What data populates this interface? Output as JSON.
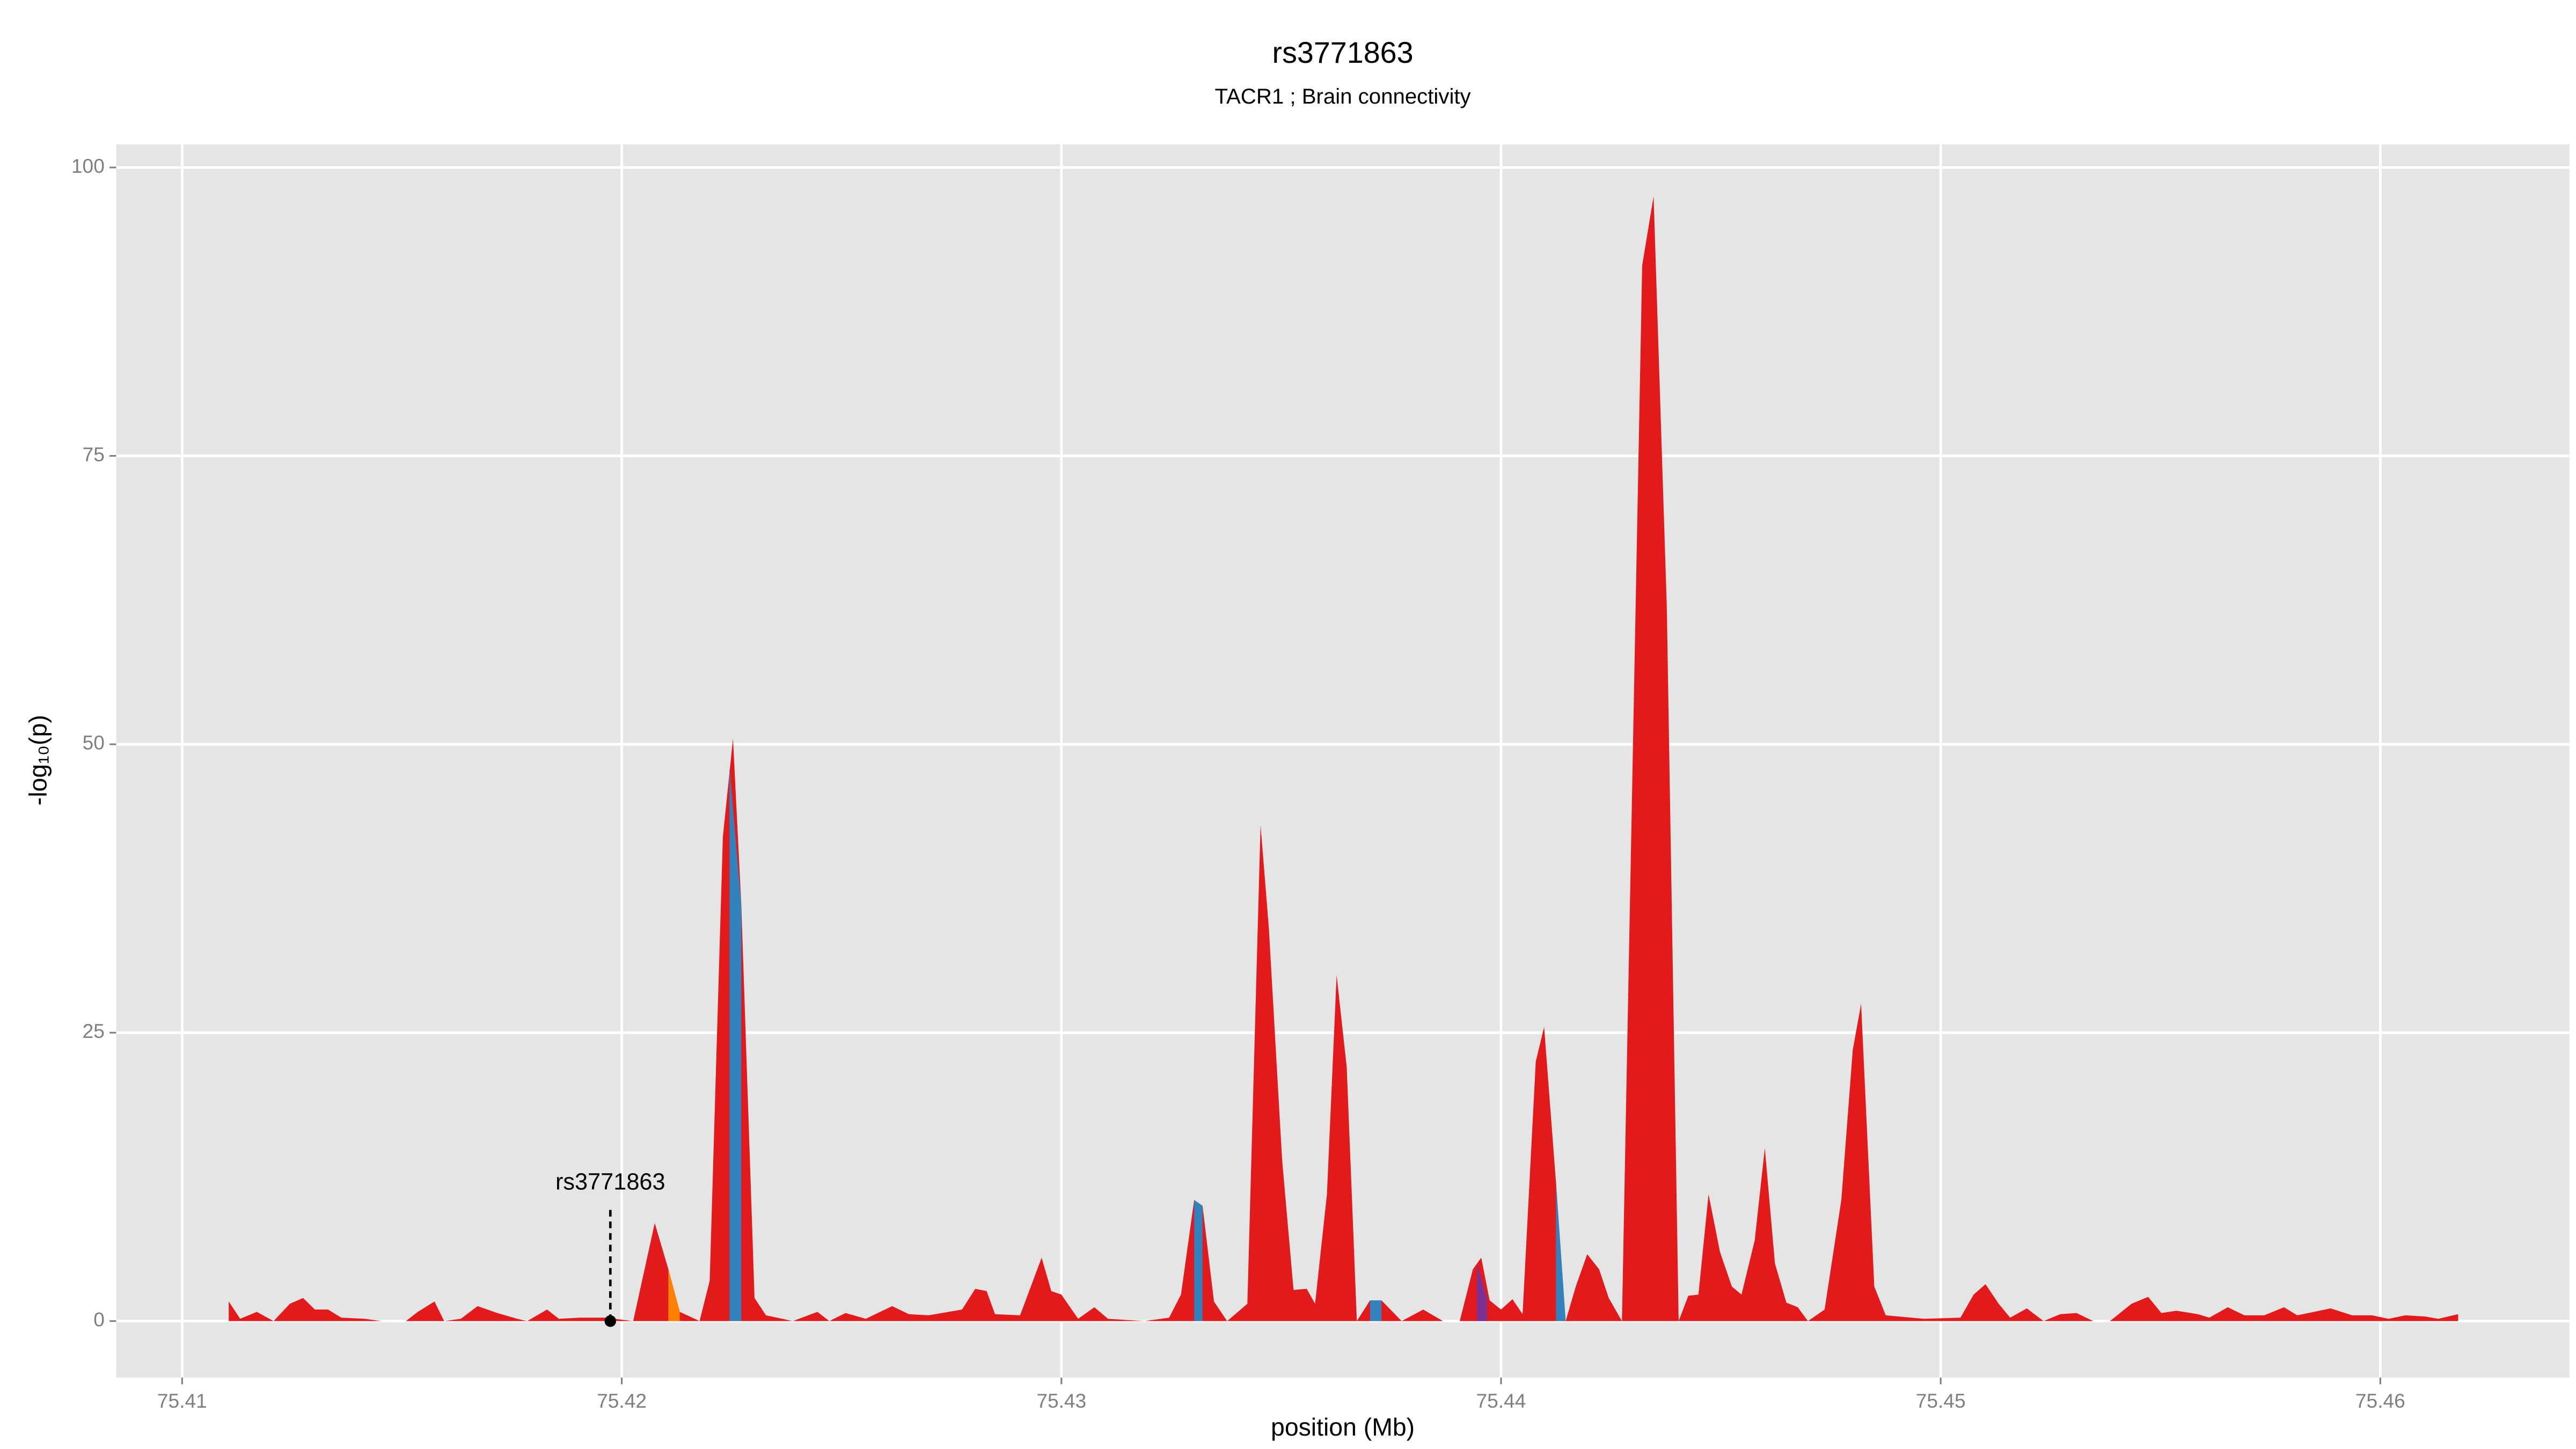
{
  "chart_data": {
    "type": "area",
    "title": "rs3771863",
    "subtitle": "TACR1 ; Brain connectivity",
    "x_label": "position (Mb)",
    "y_label": "-log₁₀(p)",
    "xlim": [
      75.4085,
      75.4643
    ],
    "ylim": [
      -4.9,
      102
    ],
    "xticks": [
      75.41,
      75.42,
      75.43,
      75.44,
      75.45,
      75.46
    ],
    "yticks": [
      0,
      25,
      50,
      75,
      100
    ],
    "grid": true,
    "series": [
      {
        "color": "#e31a1c",
        "x": [
          75.41106,
          75.41132,
          75.4117,
          75.41208,
          75.41245,
          75.41275,
          75.41302,
          75.41332,
          75.41362,
          75.41415,
          75.41453,
          75.41509,
          75.41536,
          75.41574,
          75.41596,
          75.41634,
          75.41672,
          75.41717,
          75.41762,
          75.41785,
          75.4183,
          75.41857,
          75.41906,
          75.41962,
          75.42026,
          75.42075,
          75.42106,
          75.42132,
          75.42177,
          75.422,
          75.4223,
          75.42253,
          75.42272,
          75.42302,
          75.42328,
          75.42389,
          75.42445,
          75.42472,
          75.42509,
          75.42555,
          75.42615,
          75.42653,
          75.42698,
          75.42774,
          75.42804,
          75.4283,
          75.42849,
          75.42906,
          75.42955,
          75.42977,
          75.43,
          75.43038,
          75.43075,
          75.43106,
          75.43189,
          75.43245,
          75.43272,
          75.43302,
          75.43321,
          75.43347,
          75.43377,
          75.43423,
          75.43453,
          75.43472,
          75.43502,
          75.43528,
          75.43558,
          75.43577,
          75.43604,
          75.43626,
          75.43649,
          75.43672,
          75.43702,
          75.43728,
          75.43774,
          75.43823,
          75.43868,
          75.43906,
          75.43936,
          75.43955,
          75.43974,
          75.44,
          75.44026,
          75.44049,
          75.44079,
          75.44098,
          75.44125,
          75.44147,
          75.4417,
          75.44196,
          75.44223,
          75.44245,
          75.44275,
          75.44321,
          75.44347,
          75.44377,
          75.44404,
          75.44426,
          75.44449,
          75.44472,
          75.44498,
          75.44525,
          75.44547,
          75.44577,
          75.446,
          75.44623,
          75.44649,
          75.44675,
          75.44698,
          75.44736,
          75.44774,
          75.448,
          75.44819,
          75.44849,
          75.44875,
          75.44962,
          75.45045,
          75.45075,
          75.45102,
          75.45132,
          75.45158,
          75.45196,
          75.45234,
          75.45272,
          75.45309,
          75.45347,
          75.45385,
          75.45434,
          75.45472,
          75.45502,
          75.45536,
          75.45585,
          75.45611,
          75.45653,
          75.45691,
          75.45736,
          75.45781,
          75.45811,
          75.45887,
          75.45936,
          75.45981,
          75.46019,
          75.46057,
          75.46102,
          75.46132,
          75.46177
        ],
        "values": [
          1.7,
          0.2,
          0.8,
          0,
          1.5,
          2,
          1,
          1,
          0.3,
          0.2,
          0,
          0,
          0.8,
          1.7,
          0,
          0.2,
          1.3,
          0.7,
          0.2,
          0,
          1,
          0.2,
          0.3,
          0.3,
          0,
          8.5,
          4.5,
          0.8,
          0,
          3.5,
          42,
          50.5,
          36,
          2,
          0.5,
          0,
          0.8,
          0,
          0.7,
          0.2,
          1.3,
          0.6,
          0.5,
          1,
          2.8,
          2.6,
          0.6,
          0.5,
          5.5,
          2.6,
          2.3,
          0.2,
          1.2,
          0.2,
          0,
          0.3,
          2.3,
          10.5,
          10,
          1.7,
          0,
          1.5,
          43,
          34,
          14,
          2.7,
          2.8,
          1.5,
          11,
          30,
          22,
          0,
          1.8,
          1.8,
          0,
          1,
          0,
          0,
          4.5,
          5.5,
          1.8,
          1,
          1.9,
          0.6,
          22.5,
          25.5,
          12,
          0,
          3,
          5.8,
          4.5,
          2,
          0,
          91.5,
          97.5,
          62,
          0,
          2.2,
          2.3,
          11,
          6,
          3,
          2.3,
          7,
          15,
          5,
          1.6,
          1.2,
          0,
          1,
          10.5,
          23.5,
          27.5,
          3,
          0.5,
          0.2,
          0.3,
          2.3,
          3.2,
          1.5,
          0.3,
          1.1,
          0,
          0.6,
          0.7,
          0,
          0,
          1.5,
          2.1,
          0.7,
          0.9,
          0.6,
          0.3,
          1.2,
          0.5,
          0.5,
          1.2,
          0.5,
          1.1,
          0.5,
          0.5,
          0.2,
          0.5,
          0.4,
          0.2,
          0.6
        ]
      },
      {
        "color": "#3182bd",
        "x": [
          75.42245,
          75.42272
        ],
        "values": [
          48,
          36
        ]
      },
      {
        "color": "#3182bd",
        "x": [
          75.43302,
          75.43321
        ],
        "values": [
          10.5,
          10
        ]
      },
      {
        "color": "#3182bd",
        "x": [
          75.43702,
          75.43728
        ],
        "values": [
          1.8,
          1.8
        ]
      },
      {
        "color": "#3182bd",
        "x": [
          75.44125,
          75.44147
        ],
        "values": [
          12,
          0
        ]
      },
      {
        "color": "#ff7f00",
        "x": [
          75.42106,
          75.42132
        ],
        "values": [
          4.5,
          0.8
        ]
      },
      {
        "color": "#7b3294",
        "x": [
          75.43945,
          75.43968
        ],
        "values": [
          5,
          2
        ]
      }
    ],
    "annotation": {
      "text": "rs3771863",
      "x": 75.41974,
      "y": 0
    }
  }
}
